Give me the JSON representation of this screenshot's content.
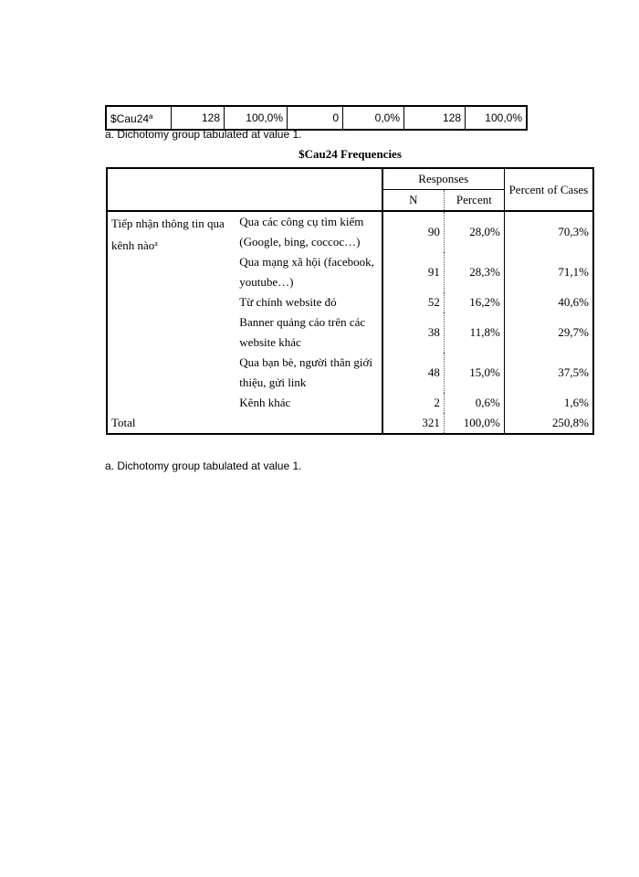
{
  "top_table": {
    "rows": [
      [
        "$Cau24",
        "128",
        "100,0%",
        "0",
        "0,0%",
        "128",
        "100,0%"
      ]
    ],
    "marker": "a"
  },
  "top_footnote": "a. Dichotomy group tabulated at value 1.",
  "title": "$Cau24 Frequencies",
  "table": {
    "header": {
      "group": "Responses",
      "n": "N",
      "percent": "Percent",
      "cases": "Percent of Cases"
    },
    "row_label": "Tiếp nhận thông tin qua kênh nào",
    "marker": "a",
    "rows": [
      [
        "Qua các công cụ tìm kiếm (Google, bing, coccoc…)",
        "90",
        "28,0%",
        "70,3%"
      ],
      [
        "Qua mạng xã hội (facebook, youtube…)",
        "91",
        "28,3%",
        "71,1%"
      ],
      [
        "Từ chính website đó",
        "52",
        "16,2%",
        "40,6%"
      ],
      [
        "Banner quảng cáo trên các website khác",
        "38",
        "11,8%",
        "29,7%"
      ],
      [
        "Qua bạn bè, người thân giới thiệu, gửi link",
        "48",
        "15,0%",
        "37,5%"
      ],
      [
        "Kênh khác",
        "2",
        "0,6%",
        "1,6%"
      ]
    ],
    "total": [
      "Total",
      "321",
      "100,0%",
      "250,8%"
    ]
  },
  "footnote": "a. Dichotomy group tabulated at value 1."
}
